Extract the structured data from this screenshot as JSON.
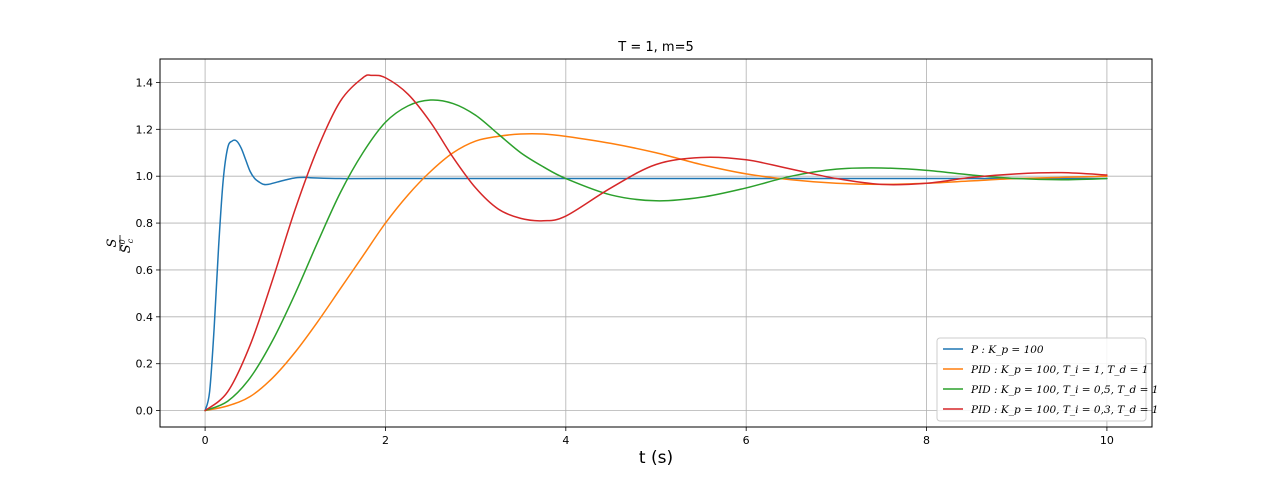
{
  "chart_data": {
    "type": "line",
    "title": "T = 1, m=5",
    "xlabel": "t (s)",
    "ylabel": "S / S_c^0",
    "ylabel_num": "S",
    "ylabel_den": "S",
    "ylabel_den_sub": "c",
    "ylabel_den_sup": "0",
    "xlim": [
      -0.5,
      10.5
    ],
    "ylim": [
      -0.07,
      1.5
    ],
    "xticks": [
      0,
      2,
      4,
      6,
      8,
      10
    ],
    "xtick_labels": [
      "0",
      "2",
      "4",
      "6",
      "8",
      "10"
    ],
    "yticks": [
      0.0,
      0.2,
      0.4,
      0.6,
      0.8,
      1.0,
      1.2,
      1.4
    ],
    "ytick_labels": [
      "0.0",
      "0.2",
      "0.4",
      "0.6",
      "0.8",
      "1.0",
      "1.2",
      "1.4"
    ],
    "grid": true,
    "legend_position": "lower-right",
    "series": [
      {
        "name": "P : K_p = 100",
        "color": "#1f77b4",
        "x": [
          0,
          0.05,
          0.1,
          0.15,
          0.2,
          0.25,
          0.3,
          0.35,
          0.4,
          0.45,
          0.5,
          0.55,
          0.6,
          0.65,
          0.7,
          0.8,
          0.9,
          1.0,
          1.1,
          1.2,
          1.5,
          2,
          3,
          4,
          5,
          6,
          7,
          8,
          9,
          10
        ],
        "y": [
          0,
          0.08,
          0.35,
          0.7,
          0.98,
          1.12,
          1.15,
          1.15,
          1.12,
          1.07,
          1.02,
          0.99,
          0.975,
          0.965,
          0.965,
          0.975,
          0.985,
          0.993,
          0.995,
          0.993,
          0.99,
          0.99,
          0.99,
          0.99,
          0.99,
          0.99,
          0.99,
          0.99,
          0.99,
          0.99
        ]
      },
      {
        "name": "PID : K_p = 100, T_i = 1, T_d = 1",
        "color": "#ff7f0e",
        "x": [
          0,
          0.25,
          0.5,
          0.75,
          1.0,
          1.25,
          1.5,
          1.75,
          2.0,
          2.25,
          2.5,
          2.75,
          3.0,
          3.25,
          3.5,
          3.75,
          4.0,
          4.5,
          5.0,
          5.5,
          6.0,
          6.5,
          7.0,
          7.5,
          8.0,
          8.5,
          9.0,
          9.5,
          10.0
        ],
        "y": [
          0,
          0.02,
          0.06,
          0.14,
          0.25,
          0.38,
          0.52,
          0.66,
          0.8,
          0.92,
          1.02,
          1.1,
          1.15,
          1.17,
          1.18,
          1.18,
          1.17,
          1.14,
          1.1,
          1.05,
          1.01,
          0.985,
          0.97,
          0.965,
          0.97,
          0.98,
          0.99,
          0.995,
          1.0
        ]
      },
      {
        "name": "PID : K_p = 100, T_i = 0,5, T_d = 1",
        "color": "#2ca02c",
        "x": [
          0,
          0.25,
          0.5,
          0.75,
          1.0,
          1.25,
          1.5,
          1.75,
          2.0,
          2.25,
          2.5,
          2.75,
          3.0,
          3.25,
          3.5,
          3.75,
          4.0,
          4.5,
          5.0,
          5.5,
          6.0,
          6.5,
          7.0,
          7.5,
          8.0,
          8.5,
          9.0,
          9.5,
          10.0
        ],
        "y": [
          0,
          0.04,
          0.14,
          0.3,
          0.5,
          0.72,
          0.93,
          1.1,
          1.23,
          1.3,
          1.325,
          1.31,
          1.26,
          1.18,
          1.1,
          1.04,
          0.99,
          0.92,
          0.895,
          0.91,
          0.95,
          1.0,
          1.03,
          1.035,
          1.025,
          1.005,
          0.99,
          0.985,
          0.99
        ]
      },
      {
        "name": "PID : K_p = 100, T_i = 0,3, T_d = 1",
        "color": "#d62728",
        "x": [
          0,
          0.25,
          0.5,
          0.75,
          1.0,
          1.25,
          1.5,
          1.75,
          1.85,
          2.0,
          2.25,
          2.5,
          2.75,
          3.0,
          3.25,
          3.5,
          3.75,
          4.0,
          4.5,
          5.0,
          5.5,
          6.0,
          6.5,
          7.0,
          7.5,
          8.0,
          8.5,
          9.0,
          9.5,
          10.0
        ],
        "y": [
          0,
          0.08,
          0.28,
          0.56,
          0.86,
          1.12,
          1.32,
          1.42,
          1.43,
          1.42,
          1.35,
          1.23,
          1.08,
          0.95,
          0.86,
          0.82,
          0.81,
          0.83,
          0.95,
          1.05,
          1.08,
          1.07,
          1.03,
          0.99,
          0.965,
          0.97,
          0.995,
          1.01,
          1.015,
          1.005
        ]
      }
    ]
  }
}
